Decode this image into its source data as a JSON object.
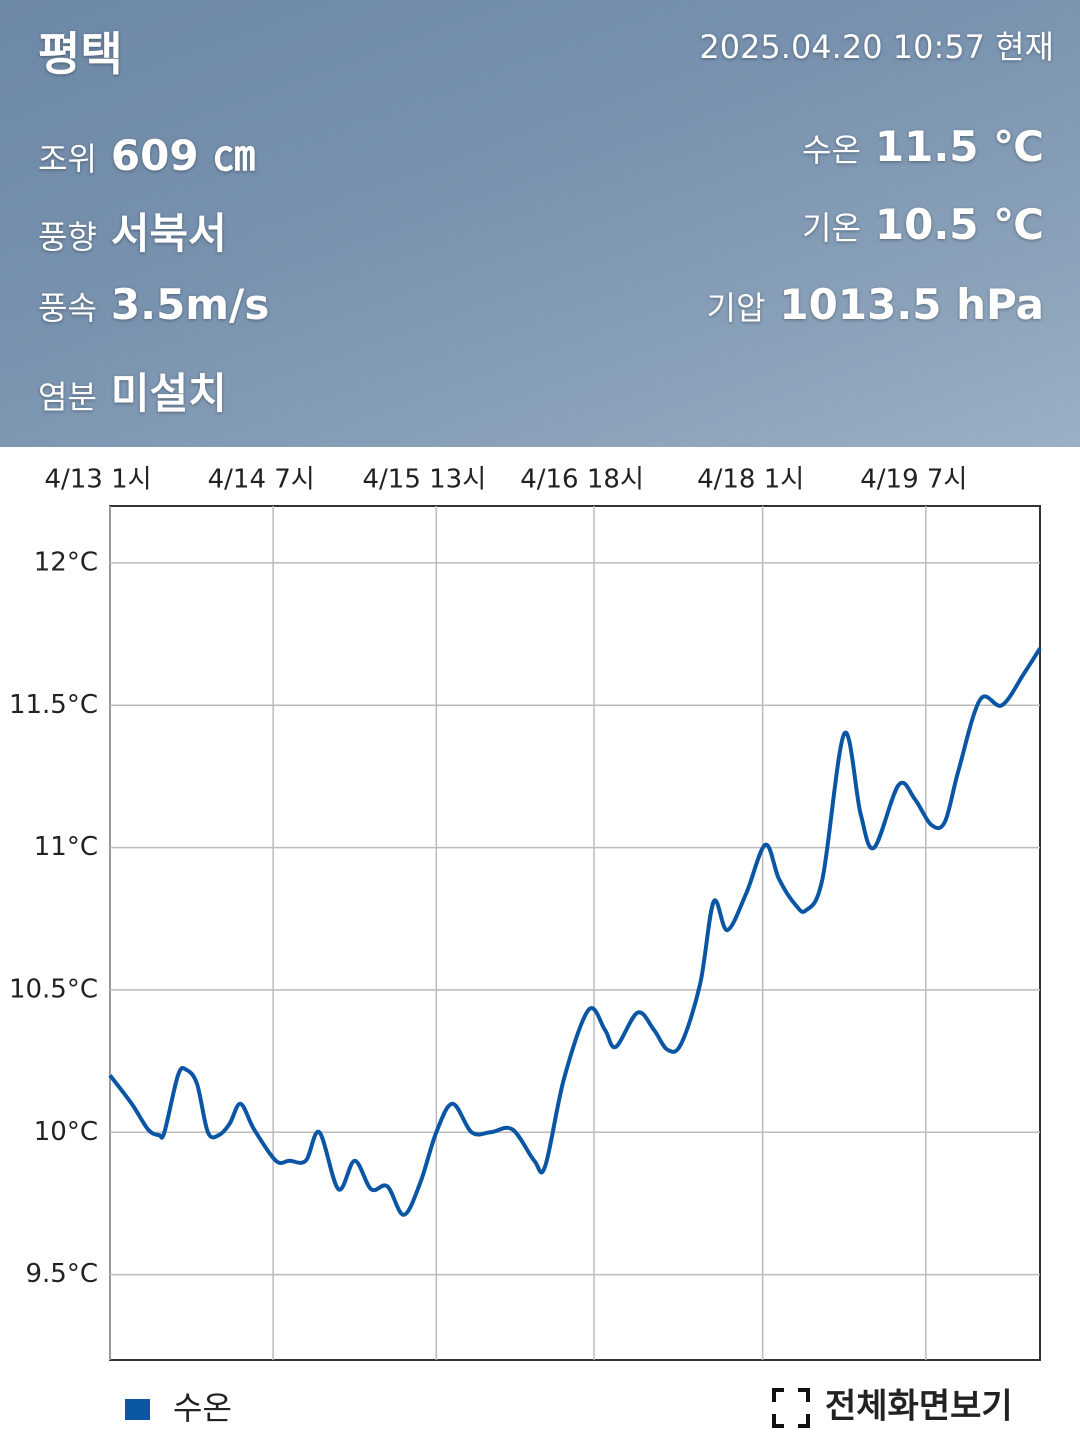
{
  "header": {
    "location": "평택",
    "timestamp": "2025.04.20 10:57 현재",
    "left": [
      {
        "label": "조위",
        "value": "609 ㎝"
      },
      {
        "label": "풍향",
        "value": "서북서"
      },
      {
        "label": "풍속",
        "value": "3.5m/s"
      },
      {
        "label": "염분",
        "value": "미설치"
      }
    ],
    "right": [
      {
        "label": "수온",
        "value": "11.5 ℃"
      },
      {
        "label": "기온",
        "value": "10.5 ℃"
      },
      {
        "label": "기압",
        "value": "1013.5 hPa"
      }
    ]
  },
  "chart_data": {
    "type": "line",
    "xlim": [
      1,
      172
    ],
    "xticks": [
      {
        "value": 1,
        "label": "4/13 1시"
      },
      {
        "value": 31,
        "label": "4/14 7시"
      },
      {
        "value": 61,
        "label": "4/15 13시"
      },
      {
        "value": 90,
        "label": "4/16 18시"
      },
      {
        "value": 121,
        "label": "4/18 1시"
      },
      {
        "value": 151,
        "label": "4/19 7시"
      }
    ],
    "ylim": [
      9.2,
      12.2
    ],
    "yticks": [
      {
        "value": 9.5,
        "label": "9.5°C"
      },
      {
        "value": 10,
        "label": "10°C"
      },
      {
        "value": 10.5,
        "label": "10.5°C"
      },
      {
        "value": 11,
        "label": "11°C"
      },
      {
        "value": 11.5,
        "label": "11.5°C"
      },
      {
        "value": 12,
        "label": "12°C"
      }
    ],
    "grid": true,
    "x": [
      1,
      5,
      8,
      10,
      11,
      13.5,
      15,
      17,
      19,
      21,
      23,
      25,
      27.5,
      31.5,
      34,
      37,
      39.5,
      43,
      46,
      49,
      52,
      55,
      58,
      61,
      64,
      67.5,
      71,
      75,
      79,
      81,
      84.5,
      89,
      92,
      94,
      98,
      101,
      103.5,
      106,
      109.5,
      112,
      114.5,
      118,
      121.5,
      124,
      127,
      129,
      132,
      136,
      139,
      141.5,
      146,
      149,
      152,
      154.5,
      157,
      161,
      165,
      169,
      172
    ],
    "series": [
      {
        "name": "수온",
        "color": "#0a56a5",
        "values": [
          10.2,
          10.1,
          10.01,
          9.99,
          10.0,
          10.2,
          10.22,
          10.17,
          10.0,
          9.99,
          10.03,
          10.1,
          10.01,
          9.9,
          9.9,
          9.9,
          10.0,
          9.8,
          9.9,
          9.8,
          9.81,
          9.71,
          9.82,
          10.0,
          10.1,
          10.0,
          10.0,
          10.01,
          9.9,
          9.88,
          10.19,
          10.43,
          10.36,
          10.3,
          10.42,
          10.36,
          10.29,
          10.31,
          10.52,
          10.81,
          10.71,
          10.84,
          11.01,
          10.89,
          10.8,
          10.78,
          10.89,
          11.4,
          11.12,
          11.0,
          11.22,
          11.17,
          11.08,
          11.09,
          11.27,
          11.52,
          11.5,
          11.61,
          11.7
        ]
      }
    ]
  },
  "controls": {
    "fullscreen": "전체화면보기"
  }
}
